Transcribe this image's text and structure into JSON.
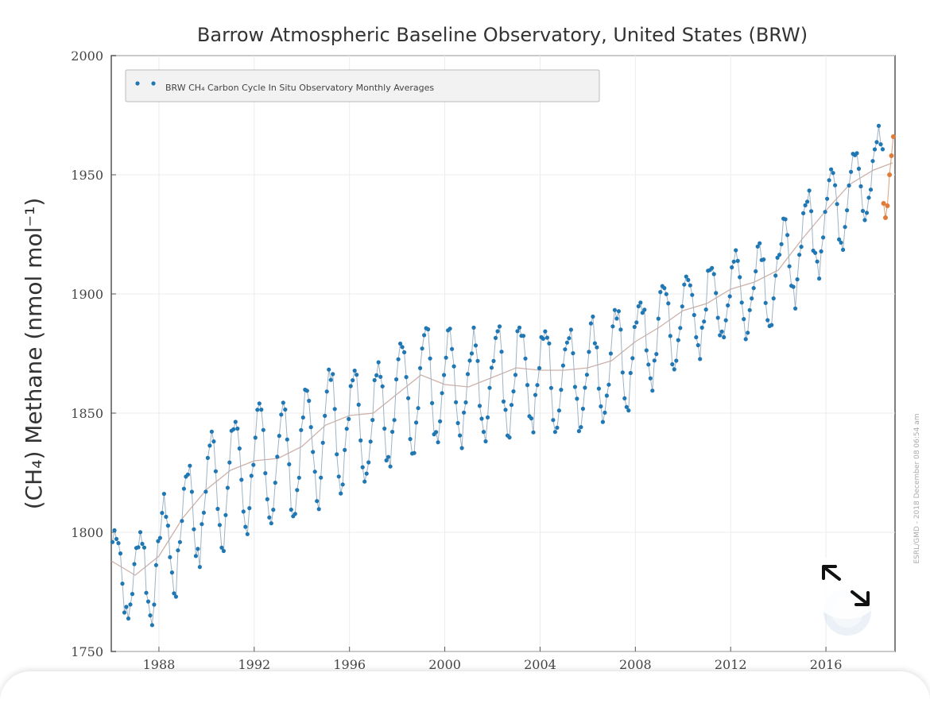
{
  "chart_data": {
    "type": "scatter",
    "title": "Barrow Atmospheric Baseline Observatory, United States (BRW)",
    "ylabel": "(CH₄) Methane (nmol mol⁻¹)",
    "xlabel": "",
    "xlim": [
      1986,
      2018.9
    ],
    "ylim": [
      1750,
      2000
    ],
    "x_ticks": [
      "1988",
      "1992",
      "1996",
      "2000",
      "2004",
      "2008",
      "2012",
      "2016"
    ],
    "y_ticks": [
      "1750",
      "1800",
      "1850",
      "1900",
      "1950",
      "2000"
    ],
    "grid": true,
    "legend_position": "top-left",
    "legend_label": "BRW CH₄ Carbon Cycle In Situ Observatory Monthly Averages",
    "credit": "ESRL/GMD - 2018 December 08 06:54 am",
    "series": [
      {
        "name": "BRW CH₄ Carbon Cycle In Situ Observatory Monthly Averages",
        "color": "#1f77b4",
        "trend": [
          [
            1986.0,
            1788
          ],
          [
            1987.0,
            1782
          ],
          [
            1988.0,
            1790
          ],
          [
            1989.0,
            1806
          ],
          [
            1990.0,
            1818
          ],
          [
            1991.0,
            1826
          ],
          [
            1992.0,
            1830
          ],
          [
            1993.0,
            1831
          ],
          [
            1994.0,
            1836
          ],
          [
            1995.0,
            1845
          ],
          [
            1996.0,
            1849
          ],
          [
            1997.0,
            1850
          ],
          [
            1998.0,
            1858
          ],
          [
            1999.0,
            1866
          ],
          [
            2000.0,
            1862
          ],
          [
            2001.0,
            1861
          ],
          [
            2002.0,
            1865
          ],
          [
            2003.0,
            1869
          ],
          [
            2004.0,
            1868
          ],
          [
            2005.0,
            1868
          ],
          [
            2006.0,
            1869
          ],
          [
            2007.0,
            1872
          ],
          [
            2008.0,
            1880
          ],
          [
            2009.0,
            1886
          ],
          [
            2010.0,
            1893
          ],
          [
            2011.0,
            1896
          ],
          [
            2012.0,
            1902
          ],
          [
            2013.0,
            1905
          ],
          [
            2014.0,
            1910
          ],
          [
            2015.0,
            1923
          ],
          [
            2016.0,
            1935
          ],
          [
            2017.0,
            1946
          ],
          [
            2018.0,
            1952
          ],
          [
            2018.8,
            1955
          ]
        ],
        "amplitude": [
          [
            1986.0,
            14
          ],
          [
            1988.0,
            18
          ],
          [
            1990.0,
            20
          ],
          [
            1996.0,
            21
          ],
          [
            2000.0,
            20
          ],
          [
            2004.0,
            18
          ],
          [
            2008.0,
            17
          ],
          [
            2012.0,
            16
          ],
          [
            2016.0,
            15
          ],
          [
            2018.8,
            15
          ]
        ]
      },
      {
        "name": "",
        "color": "#e07b39",
        "points": [
          [
            2018.42,
            1938
          ],
          [
            2018.5,
            1932
          ],
          [
            2018.58,
            1937
          ],
          [
            2018.67,
            1950
          ],
          [
            2018.75,
            1958
          ],
          [
            2018.83,
            1966
          ]
        ]
      }
    ]
  },
  "ui": {
    "expand_icon": "expand-arrows-icon"
  }
}
